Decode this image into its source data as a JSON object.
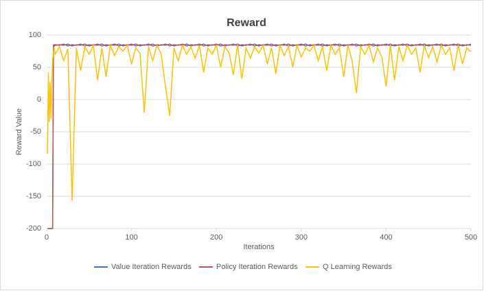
{
  "chart_data": {
    "type": "line",
    "title": "Reward",
    "x_label": "Iterations",
    "y_label": "Reward Value",
    "xlim": [
      0,
      500
    ],
    "xticks": [
      0,
      100,
      200,
      300,
      400,
      500
    ],
    "ylim": [
      -200,
      100
    ],
    "yticks": [
      -200,
      -150,
      -100,
      -50,
      0,
      50,
      100
    ],
    "grid": true,
    "legend": "bottom",
    "x": [
      1,
      2,
      3,
      4,
      5,
      6,
      7,
      8,
      9,
      10,
      15,
      20,
      25,
      30,
      35,
      40,
      45,
      50,
      55,
      60,
      65,
      70,
      75,
      80,
      85,
      90,
      95,
      100,
      105,
      110,
      115,
      120,
      125,
      130,
      135,
      140,
      145,
      150,
      155,
      160,
      165,
      170,
      175,
      180,
      185,
      190,
      195,
      200,
      205,
      210,
      215,
      220,
      225,
      230,
      235,
      240,
      245,
      250,
      255,
      260,
      265,
      270,
      275,
      280,
      285,
      290,
      295,
      300,
      305,
      310,
      315,
      320,
      325,
      330,
      335,
      340,
      345,
      350,
      355,
      360,
      365,
      370,
      375,
      380,
      385,
      390,
      395,
      400,
      405,
      410,
      415,
      420,
      425,
      430,
      435,
      440,
      445,
      450,
      455,
      460,
      465,
      470,
      475,
      480,
      485,
      490,
      495,
      500
    ],
    "series": [
      {
        "name": "Value Iteration Rewards",
        "color": "#4472c4",
        "values": [
          -200,
          -200,
          -200,
          -200,
          -200,
          -200,
          -200,
          83,
          85,
          84,
          85,
          84,
          86,
          83,
          85,
          84,
          86,
          83,
          85,
          84,
          86,
          83,
          85,
          84,
          86,
          83,
          85,
          84,
          86,
          83,
          85,
          84,
          86,
          83,
          85,
          84,
          86,
          83,
          85,
          84,
          86,
          83,
          85,
          84,
          86,
          83,
          85,
          84,
          86,
          83,
          85,
          84,
          86,
          83,
          85,
          84,
          86,
          83,
          85,
          84,
          86,
          83,
          85,
          84,
          86,
          83,
          85,
          84,
          86,
          83,
          85,
          84,
          86,
          83,
          85,
          84,
          86,
          83,
          85,
          84,
          86,
          83,
          85,
          84,
          86,
          83,
          85,
          84,
          86,
          83,
          85,
          84,
          86,
          83,
          85,
          84,
          86,
          83,
          85,
          84,
          86,
          83,
          85,
          84,
          86,
          83,
          85,
          84
        ]
      },
      {
        "name": "Policy Iteration Rewards",
        "color": "#c0504d",
        "values": [
          -200,
          -200,
          -200,
          -200,
          -200,
          -200,
          -200,
          84,
          83,
          85,
          84,
          86,
          83,
          85,
          84,
          86,
          83,
          85,
          84,
          86,
          83,
          85,
          84,
          86,
          83,
          85,
          84,
          86,
          83,
          85,
          84,
          86,
          83,
          85,
          84,
          86,
          83,
          85,
          84,
          86,
          83,
          85,
          84,
          86,
          83,
          85,
          84,
          86,
          83,
          85,
          84,
          86,
          83,
          85,
          84,
          86,
          83,
          85,
          84,
          86,
          83,
          85,
          84,
          86,
          83,
          85,
          84,
          86,
          83,
          85,
          84,
          86,
          83,
          85,
          84,
          86,
          83,
          85,
          84,
          86,
          83,
          85,
          84,
          86,
          83,
          85,
          84,
          86,
          83,
          85,
          84,
          86,
          83,
          85,
          84,
          86,
          83,
          85,
          84,
          86,
          83,
          85,
          84,
          86,
          83,
          85,
          84,
          86
        ]
      },
      {
        "name": "Q Learning Rewards",
        "color": "#ffc000",
        "values": [
          -84,
          42,
          -35,
          27,
          -30,
          25,
          60,
          75,
          80,
          70,
          82,
          60,
          78,
          -157,
          80,
          45,
          82,
          70,
          84,
          30,
          80,
          35,
          84,
          68,
          82,
          75,
          84,
          55,
          80,
          72,
          -20,
          82,
          60,
          84,
          70,
          20,
          -25,
          80,
          60,
          84,
          70,
          82,
          64,
          84,
          42,
          80,
          70,
          84,
          50,
          82,
          72,
          38,
          84,
          32,
          80,
          64,
          82,
          72,
          84,
          55,
          80,
          40,
          84,
          68,
          82,
          50,
          84,
          66,
          80,
          75,
          84,
          60,
          82,
          45,
          84,
          70,
          80,
          35,
          84,
          60,
          10,
          82,
          70,
          84,
          58,
          80,
          66,
          20,
          84,
          30,
          82,
          60,
          84,
          70,
          80,
          42,
          84,
          65,
          82,
          58,
          84,
          70,
          80,
          45,
          84,
          55,
          80,
          74
        ]
      }
    ]
  }
}
